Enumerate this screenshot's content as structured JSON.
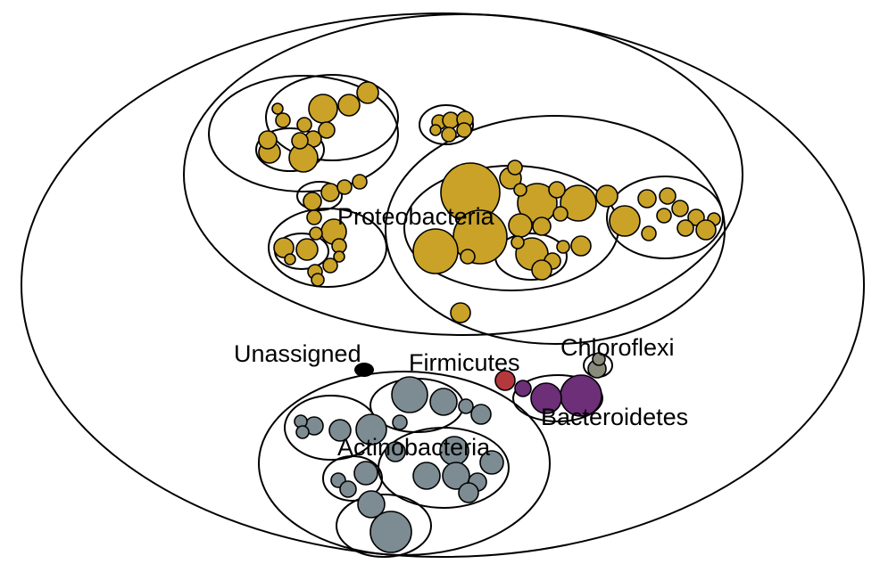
{
  "diagram": {
    "type": "circle-packing",
    "labels": {
      "proteobacteria": "Proteobacteria",
      "unassigned": "Unassigned",
      "firmicutes": "Firmicutes",
      "chloroflexi": "Chloroflexi",
      "bacteroidetes": "Bacteroidetes",
      "actinobacteria": "Actinobacteria"
    },
    "colors": {
      "proteobacteria": "#C9A227",
      "unassigned": "#000000",
      "firmicutes": "#B5383F",
      "chloroflexi": "#8A8A7A",
      "bacteroidetes": "#6C2F78",
      "actinobacteria": "#7D8C92"
    }
  }
}
